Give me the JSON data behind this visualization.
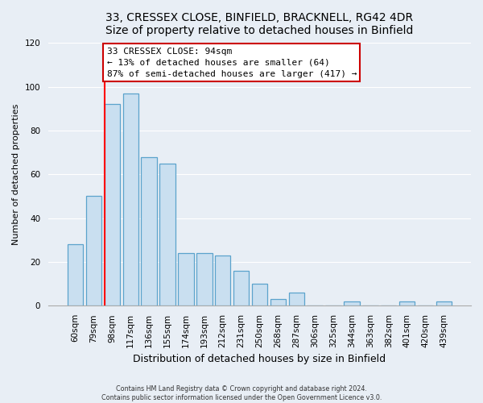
{
  "title_line1": "33, CRESSEX CLOSE, BINFIELD, BRACKNELL, RG42 4DR",
  "title_line2": "Size of property relative to detached houses in Binfield",
  "xlabel": "Distribution of detached houses by size in Binfield",
  "ylabel": "Number of detached properties",
  "bar_labels": [
    "60sqm",
    "79sqm",
    "98sqm",
    "117sqm",
    "136sqm",
    "155sqm",
    "174sqm",
    "193sqm",
    "212sqm",
    "231sqm",
    "250sqm",
    "268sqm",
    "287sqm",
    "306sqm",
    "325sqm",
    "344sqm",
    "363sqm",
    "382sqm",
    "401sqm",
    "420sqm",
    "439sqm"
  ],
  "bar_values": [
    28,
    50,
    92,
    97,
    68,
    65,
    24,
    24,
    23,
    16,
    10,
    3,
    6,
    0,
    0,
    2,
    0,
    0,
    2,
    0,
    2
  ],
  "bar_color": "#c9dff0",
  "bar_edge_color": "#5ba3cc",
  "ylim": [
    0,
    120
  ],
  "yticks": [
    0,
    20,
    40,
    60,
    80,
    100,
    120
  ],
  "red_line_index": 2,
  "annotation_title": "33 CRESSEX CLOSE: 94sqm",
  "annotation_line1": "← 13% of detached houses are smaller (64)",
  "annotation_line2": "87% of semi-detached houses are larger (417) →",
  "annotation_box_color": "#ffffff",
  "annotation_box_edge": "#cc0000",
  "footnote1": "Contains HM Land Registry data © Crown copyright and database right 2024.",
  "footnote2": "Contains public sector information licensed under the Open Government Licence v3.0.",
  "background_color": "#e8eef5",
  "grid_color": "#ffffff",
  "title_fontsize": 10,
  "xlabel_fontsize": 9,
  "ylabel_fontsize": 8,
  "tick_fontsize": 7.5,
  "ann_fontsize": 8
}
